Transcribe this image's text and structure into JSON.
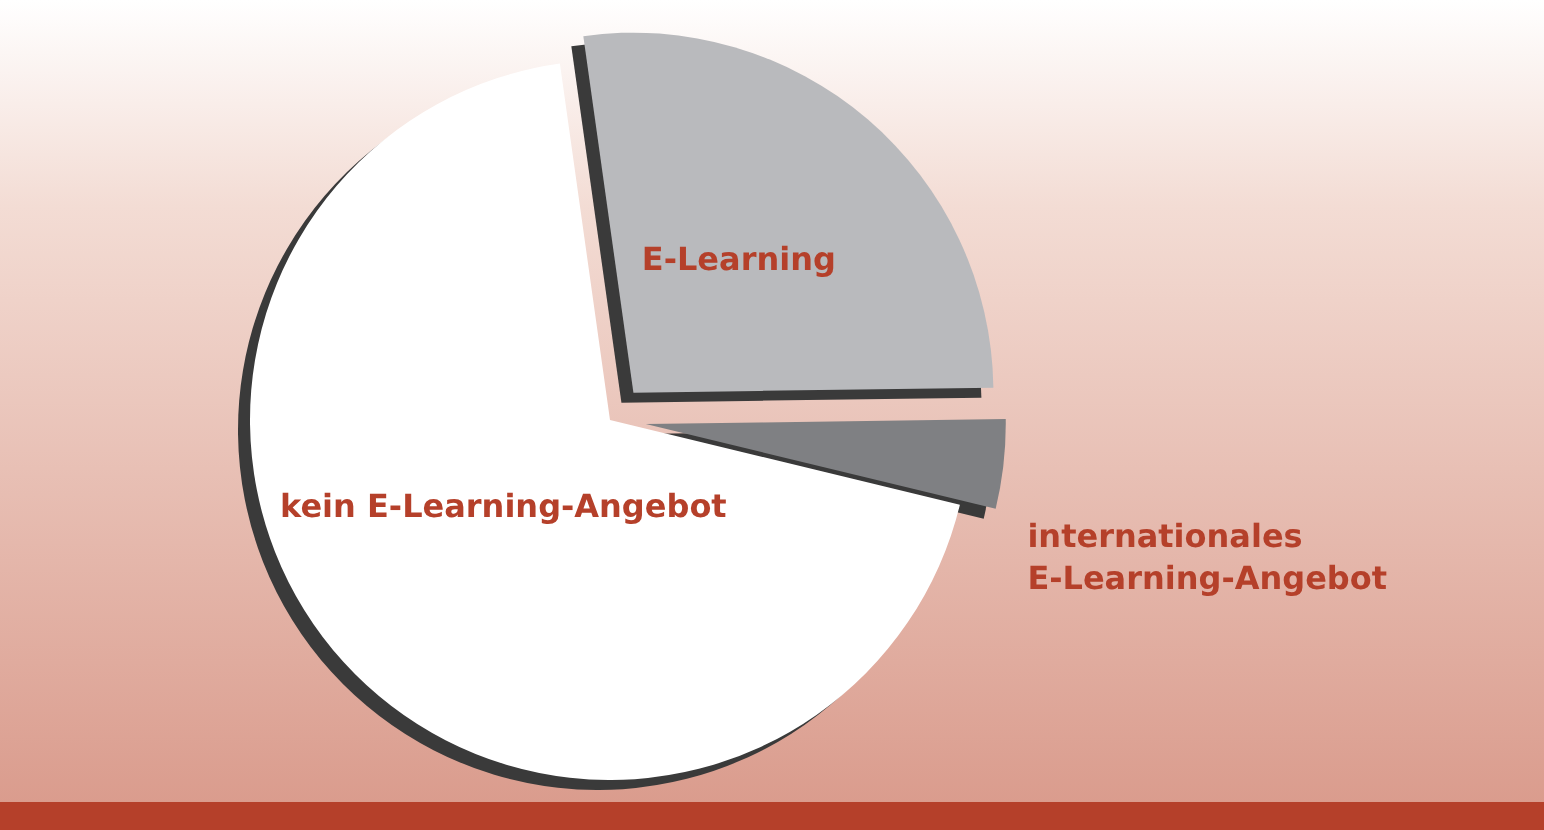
{
  "chart_data": {
    "type": "pie",
    "categories": [
      "E-Learning",
      "internationales E-Learning-Angebot",
      "kein E-Learning-Angebot"
    ],
    "values": [
      27,
      4,
      69
    ],
    "colors": [
      "#b9babd",
      "#7f8083",
      "#ffffff"
    ]
  }
}
